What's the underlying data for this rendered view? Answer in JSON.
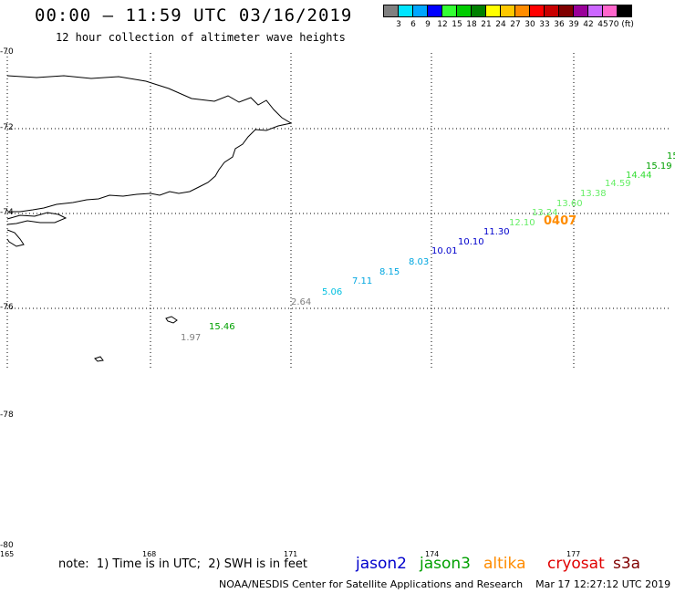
{
  "header": {
    "title": "00:00 – 11:59 UTC 03/16/2019",
    "subtitle": "12 hour collection of altimeter wave heights"
  },
  "colorbar": {
    "colors": [
      "#808080",
      "#00e5ff",
      "#00a6ff",
      "#0000ff",
      "#33ff33",
      "#00cc00",
      "#008000",
      "#ffff00",
      "#ffc800",
      "#ff8c00",
      "#ff0000",
      "#c80000",
      "#800000",
      "#990099",
      "#cc66ff",
      "#ff66cc",
      "#000000"
    ],
    "labels": [
      "3",
      "6",
      "9",
      "12",
      "15",
      "18",
      "21",
      "24",
      "27",
      "30",
      "33",
      "36",
      "39",
      "42",
      "45",
      "70 (ft)"
    ]
  },
  "lat_labels": [
    "-70",
    "-72",
    "-74",
    "-76",
    "-76",
    "-78",
    "-80"
  ],
  "lon_labels": [
    "165",
    "168",
    "171",
    "174",
    "177"
  ],
  "wave_points": [
    {
      "value": "1.97",
      "color": "#808080"
    },
    {
      "value": "15.46",
      "color": "#00a000"
    },
    {
      "value": "2.64",
      "color": "#808080"
    },
    {
      "value": "5.06",
      "color": "#00bfe0"
    },
    {
      "value": "7.11",
      "color": "#00a6e0"
    },
    {
      "value": "8.15",
      "color": "#00a6e0"
    },
    {
      "value": "8.03",
      "color": "#00a6e0"
    },
    {
      "value": "10.01",
      "color": "#0000cc"
    },
    {
      "value": "10.10",
      "color": "#0000cc"
    },
    {
      "value": "11.30",
      "color": "#0000cc"
    },
    {
      "value": "12.10",
      "color": "#66ee66"
    },
    {
      "value": "13.24",
      "color": "#66ee66"
    },
    {
      "value": "0407",
      "color": "#ff8c00"
    },
    {
      "value": "13.60",
      "color": "#66ee66"
    },
    {
      "value": "13.38",
      "color": "#66ee66"
    },
    {
      "value": "14.59",
      "color": "#66ee66"
    },
    {
      "value": "14.44",
      "color": "#33dd33"
    },
    {
      "value": "15.19",
      "color": "#00a000"
    },
    {
      "value": "15",
      "color": "#00a000"
    }
  ],
  "footer": {
    "note": "note:  1) Time is in UTC;  2) SWH is in feet",
    "satellites": [
      {
        "name": "jason2",
        "color": "#0000cc"
      },
      {
        "name": "jason3",
        "color": "#00a000"
      },
      {
        "name": "altika",
        "color": "#ff8c00"
      },
      {
        "name": "cryosat",
        "color": "#e00000"
      },
      {
        "name": "s3a",
        "color": "#800000"
      }
    ],
    "credit": "NOAA/NESDIS Center for Satellite Applications and Research    Mar 17 12:27:12 UTC 2019"
  }
}
